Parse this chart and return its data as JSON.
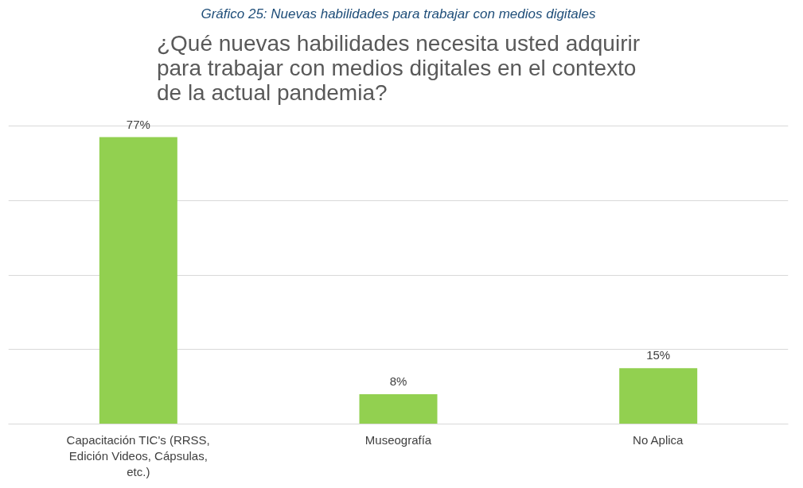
{
  "chart_data": {
    "type": "bar",
    "title": "¿Qué nuevas habilidades necesita usted adquirir para trabajar con medios digitales en el contexto de la actual pandemia?",
    "annotations": [
      "Gráfico 25: Nuevas habilidades para trabajar con medios digitales"
    ],
    "categories": [
      "Capacitación TIC's (RRSS, Edición Videos, Cápsulas, etc.)",
      "Museografía",
      "No Aplica"
    ],
    "values": [
      77,
      8,
      15
    ],
    "value_labels": [
      "77%",
      "8%",
      "15%"
    ],
    "color": "#92d050",
    "grid": "y",
    "tick_labels": "x"
  }
}
